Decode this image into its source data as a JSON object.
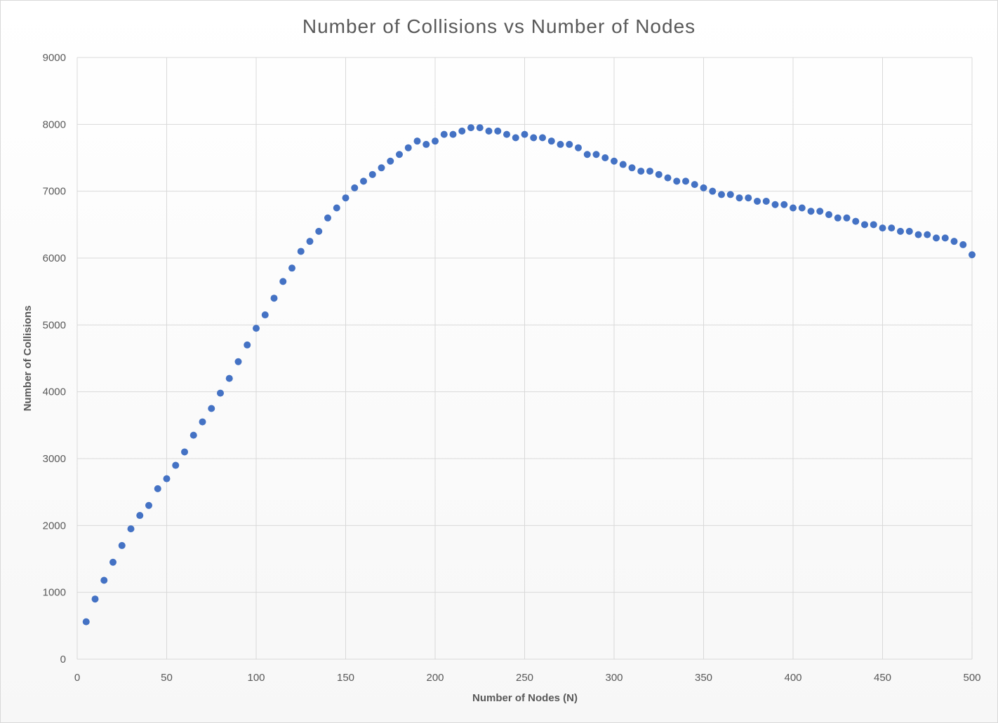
{
  "chart_data": {
    "type": "scatter",
    "title": "Number of Collisions vs Number of Nodes",
    "xlabel": "Number of Nodes (N)",
    "ylabel": "Number of Collisions",
    "xlim": [
      0,
      500
    ],
    "ylim": [
      0,
      9000
    ],
    "xticks": [
      0,
      50,
      100,
      150,
      200,
      250,
      300,
      350,
      400,
      450,
      500
    ],
    "yticks": [
      0,
      1000,
      2000,
      3000,
      4000,
      5000,
      6000,
      7000,
      8000,
      9000
    ],
    "grid": true,
    "legend": "none",
    "marker_color": "#4472C4",
    "series": [
      {
        "x": [
          5,
          10,
          15,
          20,
          25,
          30,
          35,
          40,
          45,
          50,
          55,
          60,
          65,
          70,
          75,
          80,
          85,
          90,
          95,
          100,
          105,
          110,
          115,
          120,
          125,
          130,
          135,
          140,
          145,
          150,
          155,
          160,
          165,
          170,
          175,
          180,
          185,
          190,
          195,
          200,
          205,
          210,
          215,
          220,
          225,
          230,
          235,
          240,
          245,
          250,
          255,
          260,
          265,
          270,
          275,
          280,
          285,
          290,
          295,
          300,
          305,
          310,
          315,
          320,
          325,
          330,
          335,
          340,
          345,
          350,
          355,
          360,
          365,
          370,
          375,
          380,
          385,
          390,
          395,
          400,
          405,
          410,
          415,
          420,
          425,
          430,
          435,
          440,
          445,
          450,
          455,
          460,
          465,
          470,
          475,
          480,
          485,
          490,
          495,
          500
        ],
        "y": [
          560,
          900,
          1180,
          1450,
          1700,
          1950,
          2150,
          2300,
          2550,
          2700,
          2900,
          3100,
          3350,
          3550,
          3750,
          3980,
          4200,
          4450,
          4700,
          4950,
          5150,
          5400,
          5650,
          5850,
          6100,
          6250,
          6400,
          6600,
          6750,
          6900,
          7050,
          7150,
          7250,
          7350,
          7450,
          7550,
          7650,
          7750,
          7700,
          7750,
          7850,
          7850,
          7900,
          7950,
          7950,
          7900,
          7900,
          7850,
          7800,
          7850,
          7800,
          7800,
          7750,
          7700,
          7700,
          7650,
          7550,
          7550,
          7500,
          7450,
          7400,
          7350,
          7300,
          7300,
          7250,
          7200,
          7150,
          7150,
          7100,
          7050,
          7000,
          6950,
          6950,
          6900,
          6900,
          6850,
          6850,
          6800,
          6800,
          6750,
          6750,
          6700,
          6700,
          6650,
          6600,
          6600,
          6550,
          6500,
          6500,
          6450,
          6450,
          6400,
          6400,
          6350,
          6350,
          6300,
          6300,
          6250,
          6200,
          6050
        ]
      }
    ]
  }
}
